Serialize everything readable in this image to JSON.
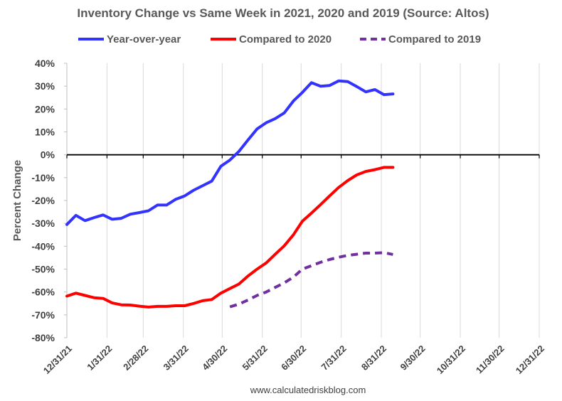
{
  "chart_data": {
    "type": "line",
    "title": "Inventory Change vs Same Week in 2021, 2020 and 2019 (Source: Altos)",
    "ylabel": "Percent Change",
    "xlabel": "",
    "source_note": "www.calculatedriskblog.com",
    "ylim": [
      -80,
      40
    ],
    "yticks": [
      40,
      30,
      20,
      10,
      0,
      -10,
      -20,
      -30,
      -40,
      -50,
      -60,
      -70,
      -80
    ],
    "ytick_labels": [
      "40%",
      "30%",
      "20%",
      "10%",
      "0%",
      "-10%",
      "-20%",
      "-30%",
      "-40%",
      "-50%",
      "-60%",
      "-70%",
      "-80%"
    ],
    "xlim": [
      "2021-12-31",
      "2022-12-31"
    ],
    "xticks": [
      "2021-12-31",
      "2022-01-31",
      "2022-02-28",
      "2022-03-31",
      "2022-04-30",
      "2022-05-31",
      "2022-06-30",
      "2022-07-31",
      "2022-08-31",
      "2022-09-30",
      "2022-10-31",
      "2022-11-30",
      "2022-12-31"
    ],
    "xtick_labels": [
      "12/31/21",
      "1/31/22",
      "2/28/22",
      "3/31/22",
      "4/30/22",
      "5/31/22",
      "6/30/22",
      "7/31/22",
      "8/31/22",
      "9/30/22",
      "10/31/22",
      "11/30/22",
      "12/31/22"
    ],
    "grid": "vertical",
    "legend_position": "top",
    "series": [
      {
        "name": "Year-over-year",
        "color": "#3333ff",
        "style": "solid",
        "points": [
          [
            "2021-12-31",
            -30.5
          ],
          [
            "2022-01-07",
            -26.5
          ],
          [
            "2022-01-14",
            -28.8
          ],
          [
            "2022-01-21",
            -27.5
          ],
          [
            "2022-01-28",
            -26.3
          ],
          [
            "2022-02-04",
            -28.2
          ],
          [
            "2022-02-11",
            -27.8
          ],
          [
            "2022-02-18",
            -26.0
          ],
          [
            "2022-02-25",
            -25.3
          ],
          [
            "2022-03-04",
            -24.5
          ],
          [
            "2022-03-11",
            -22.0
          ],
          [
            "2022-03-18",
            -22.0
          ],
          [
            "2022-03-25",
            -19.5
          ],
          [
            "2022-04-01",
            -18.0
          ],
          [
            "2022-04-08",
            -15.5
          ],
          [
            "2022-04-15",
            -13.5
          ],
          [
            "2022-04-22",
            -11.5
          ],
          [
            "2022-04-29",
            -5.0
          ],
          [
            "2022-05-06",
            -2.3
          ],
          [
            "2022-05-13",
            1.5
          ],
          [
            "2022-05-20",
            6.5
          ],
          [
            "2022-05-27",
            11.3
          ],
          [
            "2022-06-03",
            14.0
          ],
          [
            "2022-06-10",
            15.8
          ],
          [
            "2022-06-17",
            18.3
          ],
          [
            "2022-06-24",
            23.5
          ],
          [
            "2022-07-01",
            27.3
          ],
          [
            "2022-07-08",
            31.5
          ],
          [
            "2022-07-15",
            30.0
          ],
          [
            "2022-07-22",
            30.3
          ],
          [
            "2022-07-29",
            32.3
          ],
          [
            "2022-08-05",
            32.0
          ],
          [
            "2022-08-12",
            29.8
          ],
          [
            "2022-08-19",
            27.5
          ],
          [
            "2022-08-26",
            28.5
          ],
          [
            "2022-09-02",
            26.3
          ],
          [
            "2022-09-09",
            26.6
          ]
        ]
      },
      {
        "name": "Compared to 2020",
        "color": "#ff0000",
        "style": "solid",
        "points": [
          [
            "2021-12-31",
            -61.8
          ],
          [
            "2022-01-07",
            -60.5
          ],
          [
            "2022-01-14",
            -61.5
          ],
          [
            "2022-01-21",
            -62.5
          ],
          [
            "2022-01-28",
            -62.8
          ],
          [
            "2022-02-04",
            -64.8
          ],
          [
            "2022-02-11",
            -65.6
          ],
          [
            "2022-02-18",
            -65.7
          ],
          [
            "2022-02-25",
            -66.2
          ],
          [
            "2022-03-04",
            -66.6
          ],
          [
            "2022-03-11",
            -66.3
          ],
          [
            "2022-03-18",
            -66.3
          ],
          [
            "2022-03-25",
            -66.0
          ],
          [
            "2022-04-01",
            -66.0
          ],
          [
            "2022-04-08",
            -65.0
          ],
          [
            "2022-04-15",
            -63.8
          ],
          [
            "2022-04-22",
            -63.3
          ],
          [
            "2022-04-29",
            -60.5
          ],
          [
            "2022-05-06",
            -58.5
          ],
          [
            "2022-05-13",
            -56.5
          ],
          [
            "2022-05-20",
            -53.0
          ],
          [
            "2022-05-27",
            -50.0
          ],
          [
            "2022-06-03",
            -47.3
          ],
          [
            "2022-06-10",
            -43.5
          ],
          [
            "2022-06-17",
            -39.8
          ],
          [
            "2022-06-24",
            -35.0
          ],
          [
            "2022-07-01",
            -29.0
          ],
          [
            "2022-07-08",
            -25.5
          ],
          [
            "2022-07-15",
            -21.8
          ],
          [
            "2022-07-22",
            -18.0
          ],
          [
            "2022-07-29",
            -14.3
          ],
          [
            "2022-08-05",
            -11.3
          ],
          [
            "2022-08-12",
            -8.8
          ],
          [
            "2022-08-19",
            -7.3
          ],
          [
            "2022-08-26",
            -6.5
          ],
          [
            "2022-09-02",
            -5.5
          ],
          [
            "2022-09-09",
            -5.5
          ]
        ]
      },
      {
        "name": "Compared to 2019",
        "color": "#7030a0",
        "style": "dashed",
        "points": [
          [
            "2022-05-06",
            -66.5
          ],
          [
            "2022-05-13",
            -65.3
          ],
          [
            "2022-05-20",
            -63.5
          ],
          [
            "2022-05-27",
            -61.5
          ],
          [
            "2022-06-03",
            -60.0
          ],
          [
            "2022-06-10",
            -58.0
          ],
          [
            "2022-06-17",
            -56.0
          ],
          [
            "2022-06-24",
            -53.5
          ],
          [
            "2022-07-01",
            -50.0
          ],
          [
            "2022-07-08",
            -48.5
          ],
          [
            "2022-07-15",
            -47.0
          ],
          [
            "2022-07-22",
            -45.8
          ],
          [
            "2022-07-29",
            -44.8
          ],
          [
            "2022-08-05",
            -44.0
          ],
          [
            "2022-08-12",
            -43.5
          ],
          [
            "2022-08-19",
            -43.0
          ],
          [
            "2022-08-26",
            -43.0
          ],
          [
            "2022-09-02",
            -42.8
          ],
          [
            "2022-09-09",
            -43.6
          ]
        ]
      }
    ]
  }
}
